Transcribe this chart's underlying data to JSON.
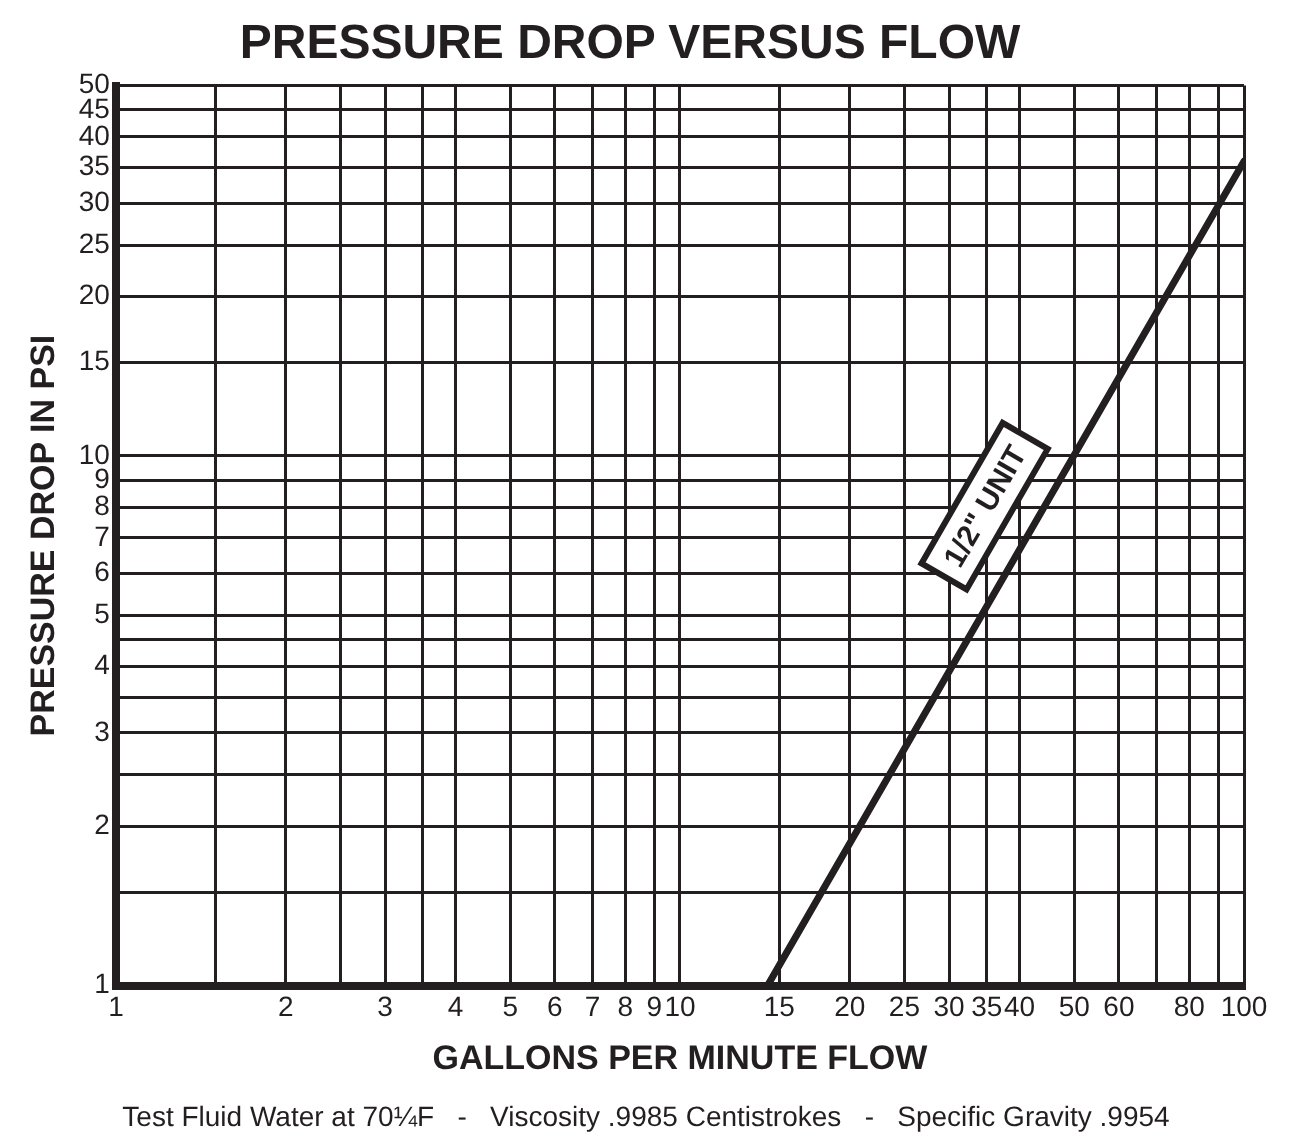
{
  "chart_data": {
    "type": "line",
    "title": "PRESSURE DROP VERSUS FLOW",
    "xlabel": "GALLONS PER MINUTE FLOW",
    "ylabel": "PRESSURE DROP IN PSI",
    "annotations": [
      "Test Fluid Water at 70¼F   -   Viscosity .9985 Centistrokes   -   Specific Gravity .9954"
    ],
    "series": [
      {
        "name": "1/2\" UNIT",
        "color": "#231f20",
        "x": [
          14.3,
          100
        ],
        "values": [
          1,
          36
        ]
      }
    ],
    "log": "xy",
    "grid": true,
    "legend": false,
    "marker": "none",
    "line_style": "solid",
    "xlim": [
      1,
      100
    ],
    "xticks": [
      1,
      {
        "value": 1.5,
        "label": null
      },
      2,
      {
        "value": 2.5,
        "label": null
      },
      3,
      {
        "value": 3.5,
        "label": null
      },
      4,
      5,
      6,
      7,
      8,
      9,
      10,
      15,
      20,
      25,
      30,
      35,
      40,
      50,
      60,
      {
        "value": 70,
        "label": null
      },
      80,
      {
        "value": 90,
        "label": null
      },
      100
    ],
    "ylim": [
      1,
      50
    ],
    "yticks": [
      1,
      {
        "value": 1.5,
        "label": null
      },
      2,
      {
        "value": 2.5,
        "label": null
      },
      3,
      {
        "value": 3.5,
        "label": null
      },
      4,
      {
        "value": 4.5,
        "label": null
      },
      5,
      6,
      7,
      8,
      9,
      10,
      15,
      20,
      25,
      30,
      35,
      40,
      45,
      50
    ]
  }
}
